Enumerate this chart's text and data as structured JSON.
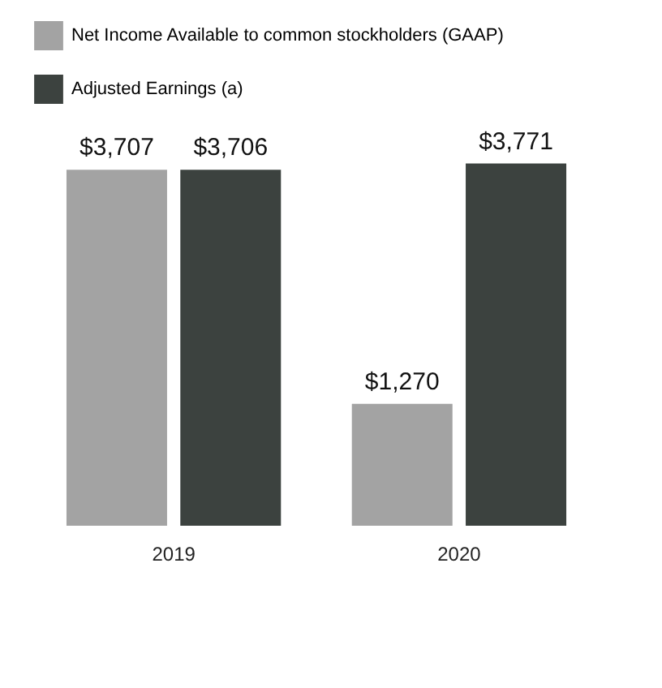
{
  "chart_data": {
    "type": "bar",
    "categories": [
      "2019",
      "2020"
    ],
    "series": [
      {
        "name": "Net Income Available to common stockholders (GAAP)",
        "color": "#a3a3a3",
        "values": [
          3707,
          1270
        ],
        "value_labels": [
          "$3,707",
          "$1,270"
        ]
      },
      {
        "name": "Adjusted Earnings (a)",
        "color": "#3c423f",
        "values": [
          3706,
          3771
        ],
        "value_labels": [
          "$3,706",
          "$3,771"
        ]
      }
    ],
    "legend": "top left"
  }
}
